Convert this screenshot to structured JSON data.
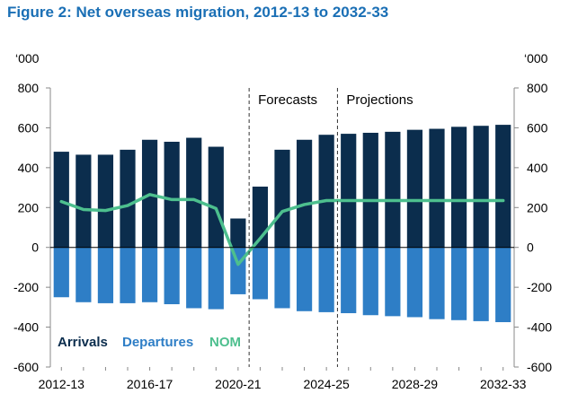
{
  "chart_data": {
    "type": "bar",
    "title": "Figure 2: Net overseas migration, 2012-13 to 2032-33",
    "unit_label_left": "‘000",
    "unit_label_right": "‘000",
    "ylim": [
      -600,
      800
    ],
    "y_ticks": [
      800,
      600,
      400,
      200,
      0,
      -200,
      -400,
      -600
    ],
    "categories": [
      "2012-13",
      "2013-14",
      "2014-15",
      "2015-16",
      "2016-17",
      "2017-18",
      "2018-19",
      "2019-20",
      "2020-21",
      "2021-22",
      "2022-23",
      "2023-24",
      "2024-25",
      "2025-26",
      "2026-27",
      "2027-28",
      "2028-29",
      "2029-30",
      "2030-31",
      "2031-32",
      "2032-33"
    ],
    "x_tick_labels": [
      "2012-13",
      "2016-17",
      "2020-21",
      "2024-25",
      "2028-29",
      "2032-33"
    ],
    "series": [
      {
        "name": "Arrivals",
        "type": "bar",
        "color": "#0b2d4d",
        "values": [
          480,
          465,
          465,
          490,
          540,
          530,
          550,
          505,
          145,
          305,
          490,
          540,
          565,
          570,
          575,
          580,
          590,
          595,
          605,
          610,
          615
        ]
      },
      {
        "name": "Departures",
        "type": "bar",
        "color": "#2e7ec6",
        "values": [
          -250,
          -275,
          -280,
          -280,
          -275,
          -285,
          -305,
          -310,
          -235,
          -260,
          -305,
          -320,
          -325,
          -330,
          -340,
          -345,
          -350,
          -360,
          -365,
          -370,
          -375
        ]
      },
      {
        "name": "NOM",
        "type": "line",
        "color": "#4dbf8e",
        "values": [
          230,
          190,
          185,
          210,
          265,
          240,
          240,
          195,
          -85,
          45,
          180,
          215,
          235,
          235,
          235,
          235,
          235,
          235,
          235,
          235,
          235
        ]
      }
    ],
    "annotations": [
      {
        "text": "Forecasts",
        "after_category": "2020-21"
      },
      {
        "text": "Projections",
        "after_category": "2024-25"
      }
    ],
    "legend": {
      "placement": "bottom-left",
      "items": [
        "Arrivals",
        "Departures",
        "NOM"
      ]
    }
  }
}
